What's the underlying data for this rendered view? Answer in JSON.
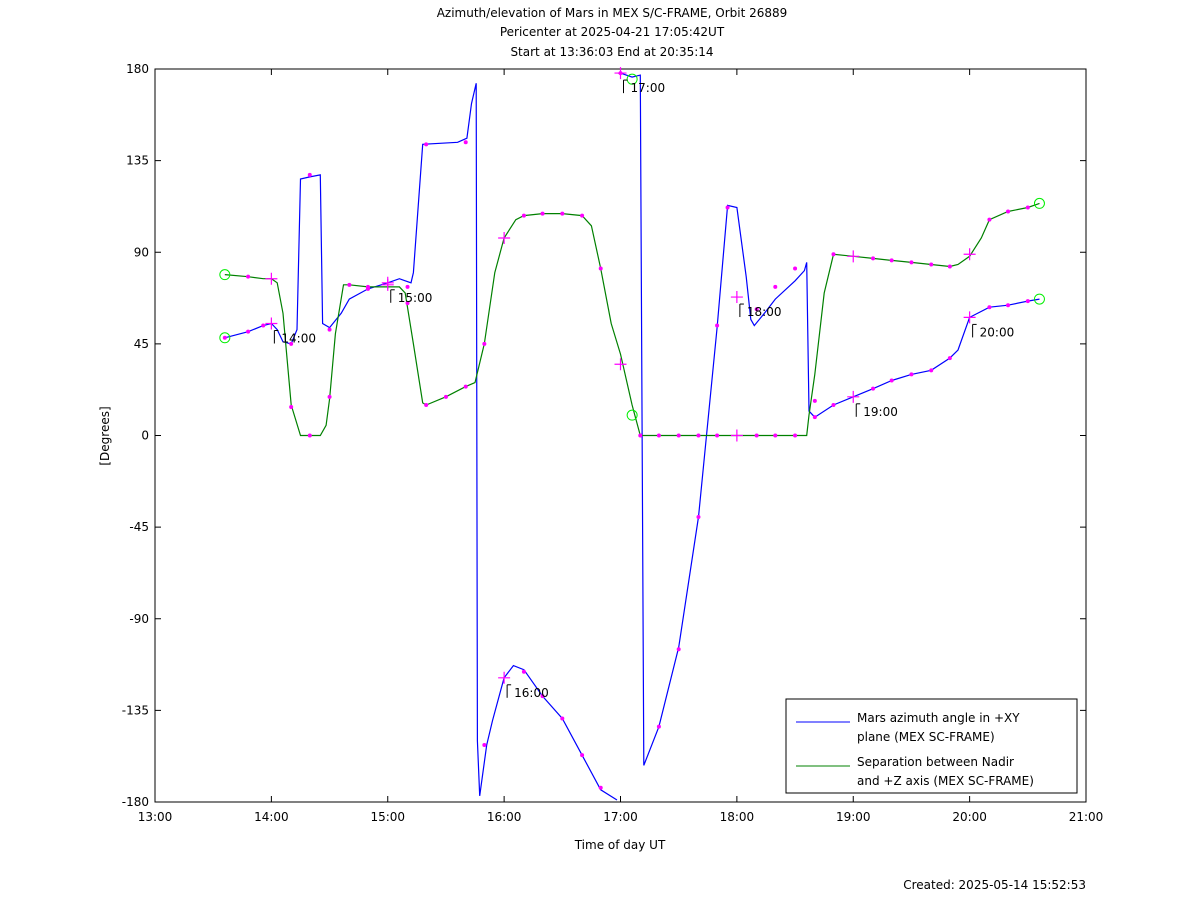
{
  "chart_data": {
    "type": "line",
    "title_lines": [
      "Azimuth/elevation of Mars in MEX S/C-FRAME,  Orbit 26889",
      "Pericenter at 2025-04-21 17:05:42UT",
      "Start at 13:36:03 End at 20:35:14"
    ],
    "xlabel": "Time of day UT",
    "ylabel": "[Degrees]",
    "created": "Created: 2025-05-14 15:52:53",
    "xlim": [
      13,
      21
    ],
    "ylim": [
      -180,
      180
    ],
    "x_ticks": [
      {
        "v": 13,
        "label": "13:00"
      },
      {
        "v": 14,
        "label": "14:00"
      },
      {
        "v": 15,
        "label": "15:00"
      },
      {
        "v": 16,
        "label": "16:00"
      },
      {
        "v": 17,
        "label": "17:00"
      },
      {
        "v": 18,
        "label": "18:00"
      },
      {
        "v": 19,
        "label": "19:00"
      },
      {
        "v": 20,
        "label": "20:00"
      },
      {
        "v": 21,
        "label": "21:00"
      }
    ],
    "y_ticks": [
      {
        "v": 180,
        "label": "180"
      },
      {
        "v": 135,
        "label": "135"
      },
      {
        "v": 90,
        "label": "90"
      },
      {
        "v": 45,
        "label": "45"
      },
      {
        "v": 0,
        "label": "0"
      },
      {
        "v": -45,
        "label": "-45"
      },
      {
        "v": -90,
        "label": "-90"
      },
      {
        "v": -135,
        "label": "-135"
      },
      {
        "v": -180,
        "label": "-180"
      }
    ],
    "grid": false,
    "legend_position": "bottom-right",
    "colors": {
      "azimuth": "#0000ff",
      "separation": "#008000",
      "marker": "#ff00ff",
      "endpoint": "#00ee00"
    },
    "series": [
      {
        "name_lines": [
          "Mars azimuth angle in +XY",
          "plane (MEX SC-FRAME)"
        ],
        "color": "#0000ff",
        "segments": [
          [
            [
              13.6,
              48
            ],
            [
              13.8,
              51
            ],
            [
              13.93,
              54
            ],
            [
              14.0,
              55
            ],
            [
              14.05,
              52
            ],
            [
              14.1,
              46
            ],
            [
              14.17,
              45
            ],
            [
              14.22,
              52
            ],
            [
              14.25,
              126
            ],
            [
              14.33,
              127
            ],
            [
              14.42,
              128
            ],
            [
              14.44,
              55
            ],
            [
              14.5,
              53
            ],
            [
              14.6,
              60
            ],
            [
              14.67,
              67
            ],
            [
              14.83,
              72
            ],
            [
              15.0,
              75
            ],
            [
              15.1,
              77
            ],
            [
              15.15,
              76
            ],
            [
              15.2,
              75
            ],
            [
              15.22,
              80
            ],
            [
              15.3,
              143
            ],
            [
              15.6,
              144
            ],
            [
              15.68,
              146
            ],
            [
              15.72,
              163
            ],
            [
              15.76,
              173
            ],
            [
              15.77,
              -150
            ],
            [
              15.79,
              -177
            ],
            [
              15.85,
              -152
            ],
            [
              15.9,
              -140
            ],
            [
              16.0,
              -119
            ],
            [
              16.08,
              -113
            ],
            [
              16.17,
              -115
            ],
            [
              16.33,
              -128
            ],
            [
              16.5,
              -139
            ],
            [
              16.67,
              -157
            ],
            [
              16.83,
              -174
            ],
            [
              16.97,
              -179
            ]
          ],
          [
            [
              16.98,
              178
            ],
            [
              17.0,
              178
            ],
            [
              17.1,
              176
            ],
            [
              17.17,
              177
            ],
            [
              17.2,
              -162
            ],
            [
              17.33,
              -143
            ],
            [
              17.5,
              -104
            ],
            [
              17.67,
              -40
            ],
            [
              17.83,
              53
            ],
            [
              17.92,
              113
            ],
            [
              18.0,
              112
            ],
            [
              18.08,
              78
            ],
            [
              18.12,
              57
            ],
            [
              18.15,
              54
            ],
            [
              18.25,
              61
            ],
            [
              18.33,
              67
            ],
            [
              18.5,
              76
            ],
            [
              18.58,
              81
            ],
            [
              18.6,
              85
            ],
            [
              18.62,
              12
            ],
            [
              18.67,
              9
            ],
            [
              18.83,
              15
            ],
            [
              19.0,
              19
            ],
            [
              19.17,
              23
            ],
            [
              19.33,
              27
            ],
            [
              19.5,
              30
            ],
            [
              19.67,
              32
            ],
            [
              19.83,
              38
            ],
            [
              19.9,
              42
            ],
            [
              20.0,
              58
            ],
            [
              20.17,
              63
            ],
            [
              20.33,
              64
            ],
            [
              20.5,
              66
            ],
            [
              20.6,
              67
            ]
          ]
        ],
        "markers": [
          [
            13.6,
            48
          ],
          [
            13.8,
            51
          ],
          [
            13.93,
            54
          ],
          [
            14.17,
            45
          ],
          [
            14.33,
            128
          ],
          [
            14.5,
            52
          ],
          [
            14.83,
            72
          ],
          [
            15.17,
            73
          ],
          [
            15.33,
            143
          ],
          [
            15.67,
            144
          ],
          [
            15.83,
            -152
          ],
          [
            16.17,
            -116
          ],
          [
            16.33,
            -128
          ],
          [
            16.5,
            -139
          ],
          [
            16.67,
            -157
          ],
          [
            16.83,
            -173
          ],
          [
            17.0,
            178
          ],
          [
            17.33,
            -143
          ],
          [
            17.5,
            -105
          ],
          [
            17.67,
            -40
          ],
          [
            17.83,
            54
          ],
          [
            17.92,
            112
          ],
          [
            18.17,
            62
          ],
          [
            18.33,
            73
          ],
          [
            18.5,
            82
          ],
          [
            18.67,
            9
          ],
          [
            18.83,
            15
          ],
          [
            19.17,
            23
          ],
          [
            19.33,
            27
          ],
          [
            19.5,
            30
          ],
          [
            19.67,
            32
          ],
          [
            19.83,
            38
          ],
          [
            20.17,
            63
          ],
          [
            20.33,
            64
          ],
          [
            20.5,
            66
          ]
        ],
        "hour_crosses": [
          [
            14.0,
            55
          ],
          [
            15.0,
            75
          ],
          [
            16.0,
            -119
          ],
          [
            17.0,
            178
          ],
          [
            18.0,
            68
          ],
          [
            19.0,
            19
          ],
          [
            20.0,
            58
          ]
        ]
      },
      {
        "name_lines": [
          "Separation between Nadir",
          "and +Z axis (MEX SC-FRAME)"
        ],
        "color": "#008000",
        "segments": [
          [
            [
              13.6,
              79
            ],
            [
              13.8,
              78
            ],
            [
              13.93,
              77
            ],
            [
              14.0,
              77
            ],
            [
              14.05,
              75
            ],
            [
              14.1,
              60
            ],
            [
              14.17,
              15
            ],
            [
              14.25,
              0
            ],
            [
              14.33,
              0
            ],
            [
              14.42,
              0
            ],
            [
              14.47,
              5
            ],
            [
              14.5,
              18
            ],
            [
              14.55,
              50
            ],
            [
              14.62,
              74
            ],
            [
              14.67,
              74
            ],
            [
              14.83,
              73
            ],
            [
              15.0,
              73
            ],
            [
              15.1,
              73
            ],
            [
              15.15,
              70
            ],
            [
              15.22,
              45
            ],
            [
              15.3,
              16
            ],
            [
              15.33,
              15
            ],
            [
              15.5,
              19
            ],
            [
              15.67,
              24
            ],
            [
              15.75,
              26
            ],
            [
              15.83,
              45
            ],
            [
              15.92,
              80
            ],
            [
              16.0,
              97
            ],
            [
              16.1,
              106
            ],
            [
              16.17,
              108
            ],
            [
              16.33,
              109
            ],
            [
              16.5,
              109
            ],
            [
              16.67,
              108
            ],
            [
              16.75,
              103
            ],
            [
              16.83,
              82
            ],
            [
              16.92,
              55
            ],
            [
              17.0,
              40
            ],
            [
              17.1,
              15
            ],
            [
              17.17,
              0
            ],
            [
              17.33,
              0
            ],
            [
              17.5,
              0
            ],
            [
              17.67,
              0
            ],
            [
              17.83,
              0
            ],
            [
              18.0,
              0
            ],
            [
              18.17,
              0
            ],
            [
              18.33,
              0
            ],
            [
              18.5,
              0
            ],
            [
              18.6,
              0
            ],
            [
              18.62,
              10
            ],
            [
              18.67,
              30
            ],
            [
              18.75,
              70
            ],
            [
              18.83,
              89
            ],
            [
              19.0,
              88
            ],
            [
              19.17,
              87
            ],
            [
              19.33,
              86
            ],
            [
              19.5,
              85
            ],
            [
              19.67,
              84
            ],
            [
              19.83,
              83
            ],
            [
              19.9,
              84
            ],
            [
              20.0,
              88
            ],
            [
              20.1,
              97
            ],
            [
              20.17,
              106
            ],
            [
              20.33,
              110
            ],
            [
              20.5,
              112
            ],
            [
              20.6,
              114
            ]
          ]
        ],
        "markers": [
          [
            13.8,
            78
          ],
          [
            14.17,
            14
          ],
          [
            14.33,
            0
          ],
          [
            14.5,
            19
          ],
          [
            14.67,
            74
          ],
          [
            14.83,
            73
          ],
          [
            15.17,
            65
          ],
          [
            15.33,
            15
          ],
          [
            15.5,
            19
          ],
          [
            15.67,
            24
          ],
          [
            15.83,
            45
          ],
          [
            16.17,
            108
          ],
          [
            16.33,
            109
          ],
          [
            16.5,
            109
          ],
          [
            16.67,
            108
          ],
          [
            16.83,
            82
          ],
          [
            17.17,
            0
          ],
          [
            17.33,
            0
          ],
          [
            17.5,
            0
          ],
          [
            17.67,
            0
          ],
          [
            17.83,
            0
          ],
          [
            18.17,
            0
          ],
          [
            18.33,
            0
          ],
          [
            18.5,
            0
          ],
          [
            18.67,
            17
          ],
          [
            18.83,
            89
          ],
          [
            19.17,
            87
          ],
          [
            19.33,
            86
          ],
          [
            19.5,
            85
          ],
          [
            19.67,
            84
          ],
          [
            19.83,
            83
          ],
          [
            20.17,
            106
          ],
          [
            20.33,
            110
          ],
          [
            20.5,
            112
          ]
        ],
        "hour_crosses": [
          [
            14.0,
            77
          ],
          [
            15.0,
            74
          ],
          [
            16.0,
            97
          ],
          [
            17.0,
            35
          ],
          [
            18.0,
            0
          ],
          [
            19.0,
            88
          ],
          [
            20.0,
            89
          ]
        ]
      }
    ],
    "endpoint_circles": [
      [
        13.6,
        79
      ],
      [
        13.6,
        48
      ],
      [
        20.6,
        114
      ],
      [
        20.6,
        67
      ],
      [
        17.1,
        10
      ],
      [
        17.1,
        175
      ]
    ],
    "hour_labels": [
      {
        "x": 14.0,
        "y": 55,
        "label": "14:00"
      },
      {
        "x": 15.0,
        "y": 75,
        "label": "15:00"
      },
      {
        "x": 16.0,
        "y": -119,
        "label": "16:00"
      },
      {
        "x": 17.0,
        "y": 178,
        "label": "17:00"
      },
      {
        "x": 18.0,
        "y": 68,
        "label": "18:00"
      },
      {
        "x": 19.0,
        "y": 19,
        "label": "19:00"
      },
      {
        "x": 20.0,
        "y": 58,
        "label": "20:00"
      }
    ]
  }
}
